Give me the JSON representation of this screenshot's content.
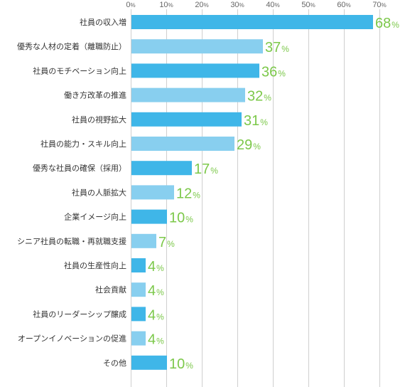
{
  "chart_data": {
    "type": "bar",
    "orientation": "horizontal",
    "categories": [
      "社員の収入増",
      "優秀な人材の定着（離職防止）",
      "社員のモチベーション向上",
      "働き方改革の推進",
      "社員の視野拡大",
      "社員の能力・スキル向上",
      "優秀な社員の確保（採用）",
      "社員の人脈拡大",
      "企業イメージ向上",
      "シニア社員の転職・再就職支援",
      "社員の生産性向上",
      "社会貢献",
      "社員のリーダーシップ醸成",
      "オープンイノベーションの促進",
      "その他"
    ],
    "values": [
      68,
      37,
      36,
      32,
      31,
      29,
      17,
      12,
      10,
      7,
      4,
      4,
      4,
      4,
      10
    ],
    "value_unit": "%",
    "xlim": [
      0,
      70
    ],
    "xticks": [
      0,
      10,
      20,
      30,
      40,
      50,
      60,
      70
    ],
    "tick_unit": "%",
    "grid": true,
    "colors": {
      "bar_dark": "#3fb6e8",
      "bar_light": "#88cfef",
      "value_text": "#7cc84a",
      "grid": "#cfcfcf"
    }
  }
}
